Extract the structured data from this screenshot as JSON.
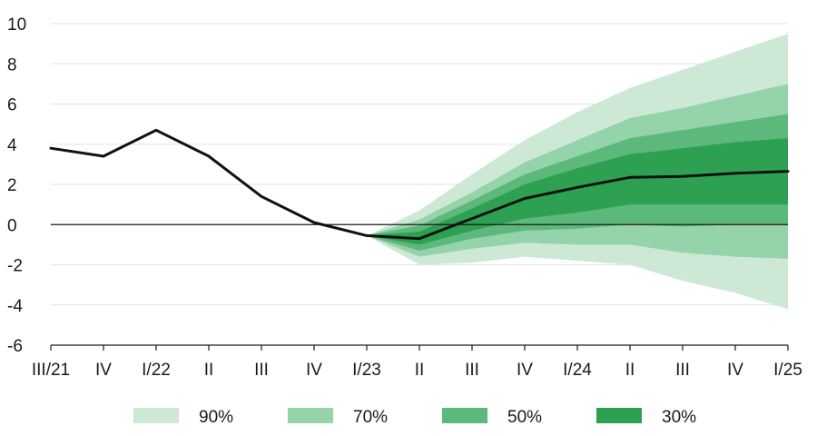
{
  "chart_data": {
    "type": "area",
    "title": "",
    "xlabel": "",
    "ylabel": "",
    "categories": [
      "III/21",
      "IV",
      "I/22",
      "II",
      "III",
      "IV",
      "I/23",
      "II",
      "III",
      "IV",
      "I/24",
      "II",
      "III",
      "IV",
      "I/25"
    ],
    "ylim": [
      -6,
      10
    ],
    "yticks": [
      10,
      8,
      6,
      4,
      2,
      0,
      -2,
      -4,
      -6
    ],
    "grid": "horizontal",
    "legend_position": "bottom",
    "series": [
      {
        "values": [
          3.8,
          3.4,
          4.7,
          3.4,
          1.4,
          0.1,
          -0.55,
          -0.7,
          0.3,
          1.3,
          1.85,
          2.35,
          2.4,
          2.55,
          2.65
        ]
      }
    ],
    "fan": {
      "start_index": 6,
      "bands": [
        {
          "name": "90%",
          "color": "#cde9d6",
          "lower": [
            -0.55,
            -2.0,
            -1.9,
            -1.6,
            -1.8,
            -2.0,
            -2.8,
            -3.4,
            -4.2
          ],
          "upper": [
            -0.55,
            0.7,
            2.5,
            4.2,
            5.6,
            6.8,
            7.7,
            8.6,
            9.5
          ]
        },
        {
          "name": "70%",
          "color": "#95d3aa",
          "lower": [
            -0.55,
            -1.6,
            -1.2,
            -0.9,
            -1.0,
            -1.0,
            -1.4,
            -1.6,
            -1.7
          ],
          "upper": [
            -0.55,
            0.25,
            1.6,
            3.1,
            4.2,
            5.3,
            5.8,
            6.4,
            7.0
          ]
        },
        {
          "name": "50%",
          "color": "#5cb87b",
          "lower": [
            -0.55,
            -1.3,
            -0.7,
            -0.3,
            -0.2,
            0.0,
            -0.1,
            0.0,
            0.0
          ],
          "upper": [
            -0.55,
            -0.05,
            1.2,
            2.5,
            3.4,
            4.3,
            4.7,
            5.1,
            5.5
          ]
        },
        {
          "name": "30%",
          "color": "#2ea052",
          "lower": [
            -0.55,
            -1.0,
            -0.3,
            0.3,
            0.6,
            1.0,
            1.0,
            1.0,
            1.0
          ],
          "upper": [
            -0.55,
            -0.35,
            0.8,
            2.0,
            2.8,
            3.5,
            3.8,
            4.1,
            4.3
          ]
        }
      ]
    }
  }
}
